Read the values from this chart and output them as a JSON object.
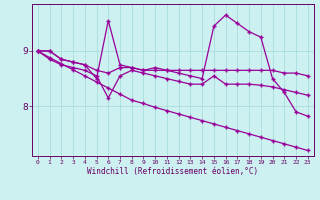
{
  "xlabel": "Windchill (Refroidissement éolien,°C)",
  "background_color": "#cdf0f0",
  "line_color": "#990099",
  "grid_color": "#aadddd",
  "x": [
    0,
    1,
    2,
    3,
    4,
    5,
    6,
    7,
    8,
    9,
    10,
    11,
    12,
    13,
    14,
    15,
    16,
    17,
    18,
    19,
    20,
    21,
    22,
    23
  ],
  "series_jagged": [
    9.0,
    9.0,
    8.85,
    8.8,
    8.75,
    8.5,
    9.55,
    8.75,
    8.7,
    8.65,
    8.7,
    8.65,
    8.6,
    8.55,
    8.5,
    9.45,
    9.65,
    9.5,
    9.35,
    9.25,
    8.5,
    8.25,
    7.9,
    7.82
  ],
  "series_flat": [
    9.0,
    9.0,
    8.85,
    8.8,
    8.75,
    8.65,
    8.6,
    8.7,
    8.7,
    8.65,
    8.65,
    8.65,
    8.65,
    8.65,
    8.65,
    8.65,
    8.65,
    8.65,
    8.65,
    8.65,
    8.65,
    8.6,
    8.6,
    8.55
  ],
  "series_mid": [
    9.0,
    8.85,
    8.75,
    8.7,
    8.65,
    8.55,
    8.15,
    8.55,
    8.65,
    8.6,
    8.55,
    8.5,
    8.45,
    8.4,
    8.4,
    8.55,
    8.4,
    8.4,
    8.4,
    8.38,
    8.35,
    8.3,
    8.25,
    8.2
  ],
  "series_linear": [
    9.0,
    8.88,
    8.77,
    8.66,
    8.55,
    8.44,
    8.33,
    8.22,
    8.11,
    8.05,
    7.98,
    7.92,
    7.86,
    7.8,
    7.74,
    7.68,
    7.62,
    7.56,
    7.5,
    7.44,
    7.38,
    7.32,
    7.26,
    7.2
  ],
  "yticks": [
    8,
    9
  ],
  "ylim": [
    7.1,
    9.85
  ],
  "xlim": [
    -0.5,
    23.5
  ]
}
